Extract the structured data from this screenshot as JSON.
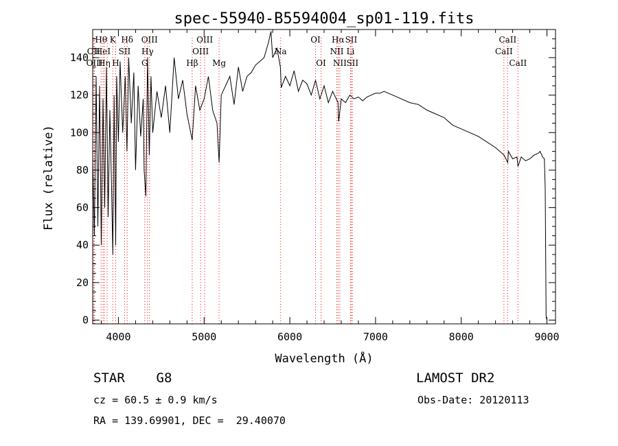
{
  "chart_data": {
    "type": "line",
    "title": "spec-55940-B5594004_sp01-119.fits",
    "xlabel": "Wavelength (Å)",
    "ylabel": "Flux (relative)",
    "xlim": [
      3700,
      9100
    ],
    "ylim": [
      -2,
      155
    ],
    "xticks": [
      4000,
      5000,
      6000,
      7000,
      8000,
      9000
    ],
    "yticks": [
      0,
      20,
      40,
      60,
      80,
      100,
      120,
      140
    ],
    "grid": false,
    "line_color": "#000000",
    "marker_line_color": "#ff0000",
    "series": [
      {
        "x": [
          3700,
          3720,
          3740,
          3760,
          3780,
          3800,
          3820,
          3840,
          3860,
          3880,
          3900,
          3920,
          3935,
          3950,
          3968,
          3980,
          4000,
          4020,
          4050,
          4080,
          4100,
          4120,
          4150,
          4180,
          4200,
          4230,
          4260,
          4290,
          4300,
          4320,
          4340,
          4360,
          4380,
          4400,
          4450,
          4500,
          4550,
          4600,
          4650,
          4700,
          4750,
          4800,
          4861,
          4900,
          4950,
          5000,
          5050,
          5100,
          5150,
          5175,
          5200,
          5250,
          5300,
          5350,
          5400,
          5450,
          5500,
          5550,
          5600,
          5650,
          5700,
          5750,
          5780,
          5800,
          5850,
          5890,
          5900,
          5950,
          6000,
          6050,
          6100,
          6150,
          6200,
          6250,
          6300,
          6350,
          6400,
          6450,
          6500,
          6563,
          6570,
          6600,
          6650,
          6700,
          6750,
          6800,
          6850,
          6900,
          6950,
          7000,
          7050,
          7100,
          7150,
          7200,
          7300,
          7400,
          7500,
          7600,
          7700,
          7800,
          7900,
          8000,
          8100,
          8200,
          8300,
          8400,
          8450,
          8500,
          8542,
          8550,
          8600,
          8650,
          8662,
          8700,
          8750,
          8800,
          8850,
          8900,
          8920,
          8950,
          8970,
          8980,
          8990,
          9000
        ],
        "y": [
          85,
          45,
          130,
          50,
          125,
          40,
          118,
          60,
          135,
          55,
          112,
          70,
          35,
          120,
          40,
          130,
          95,
          138,
          100,
          130,
          90,
          140,
          105,
          132,
          80,
          125,
          98,
          118,
          80,
          66,
          140,
          88,
          130,
          100,
          122,
          108,
          125,
          100,
          140,
          118,
          128,
          110,
          96,
          125,
          112,
          118,
          130,
          112,
          105,
          84,
          120,
          125,
          130,
          115,
          135,
          122,
          130,
          132,
          136,
          138,
          140,
          148,
          154,
          140,
          145,
          135,
          124,
          130,
          125,
          133,
          122,
          128,
          126,
          120,
          128,
          118,
          125,
          116,
          122,
          116,
          106,
          118,
          116,
          120,
          118,
          119,
          117,
          119,
          120,
          121,
          121,
          122,
          121,
          120,
          118,
          116,
          115,
          112,
          110,
          108,
          104,
          102,
          100,
          98,
          95,
          92,
          90,
          88,
          84,
          90,
          86,
          87,
          82,
          87,
          85,
          86,
          88,
          89,
          90,
          87,
          86,
          70,
          2,
          0
        ]
      }
    ],
    "line_markers": [
      {
        "x": 3711,
        "label": "OII",
        "row": 1
      },
      {
        "x": 3721,
        "label": "OIII",
        "row": 2
      },
      {
        "x": 3798,
        "label": "Hθ",
        "row": 0
      },
      {
        "x": 3820,
        "label": "HeI",
        "row": 1
      },
      {
        "x": 3835,
        "label": "Hη",
        "row": 2
      },
      {
        "x": 3869,
        "label": "",
        "row": 1
      },
      {
        "x": 3934,
        "label": "K",
        "row": 0
      },
      {
        "x": 3968,
        "label": "H",
        "row": 2
      },
      {
        "x": 4072,
        "label": "SII",
        "row": 1
      },
      {
        "x": 4102,
        "label": "Hδ",
        "row": 0
      },
      {
        "x": 4307,
        "label": "G",
        "row": 2
      },
      {
        "x": 4340,
        "label": "Hγ",
        "row": 1
      },
      {
        "x": 4363,
        "label": "OIII",
        "row": 0
      },
      {
        "x": 4861,
        "label": "Hβ",
        "row": 2
      },
      {
        "x": 4959,
        "label": "OIII",
        "row": 1
      },
      {
        "x": 5007,
        "label": "OIII",
        "row": 0
      },
      {
        "x": 5175,
        "label": "Mg",
        "row": 2
      },
      {
        "x": 5893,
        "label": "Na",
        "row": 1
      },
      {
        "x": 6300,
        "label": "OI",
        "row": 0
      },
      {
        "x": 6364,
        "label": "OI",
        "row": 2
      },
      {
        "x": 6548,
        "label": "NII",
        "row": 1
      },
      {
        "x": 6563,
        "label": "Hα",
        "row": 0
      },
      {
        "x": 6583,
        "label": "NII",
        "row": 2
      },
      {
        "x": 6708,
        "label": "Li",
        "row": 1
      },
      {
        "x": 6716,
        "label": "SII",
        "row": 0
      },
      {
        "x": 6731,
        "label": "SII",
        "row": 2
      },
      {
        "x": 8498,
        "label": "CaII",
        "row": 1
      },
      {
        "x": 8542,
        "label": "CaII",
        "row": 0
      },
      {
        "x": 8662,
        "label": "CaII",
        "row": 2
      }
    ]
  },
  "info": {
    "object_class": "STAR    G8",
    "survey": "LAMOST DR2",
    "redshift": "cz = 60.5 ± 0.9 km/s",
    "obs_date": "Obs-Date: 20120113",
    "coords": "RA = 139.69901, DEC =  29.40070"
  }
}
